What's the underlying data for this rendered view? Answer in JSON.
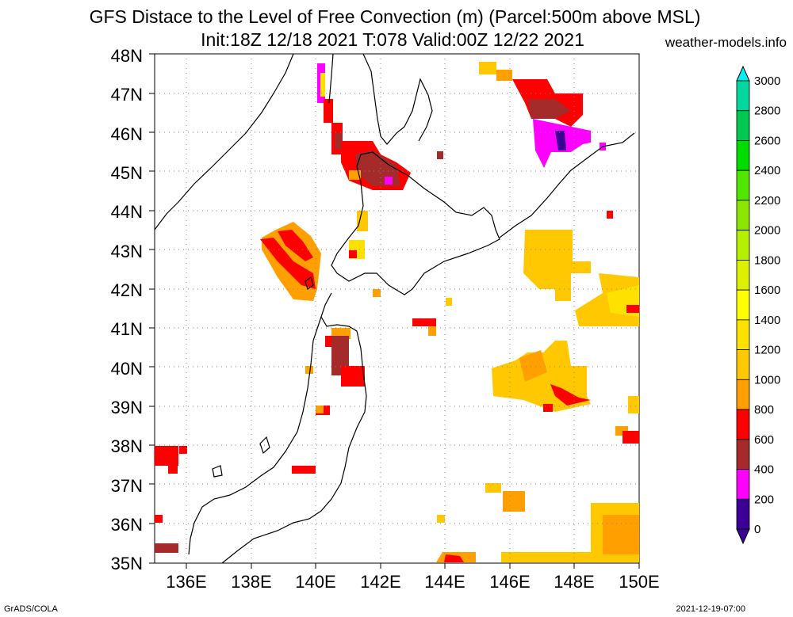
{
  "title_line1": "GFS Distace to the Level of Free Convection (m) (Parcel:500m above MSL)",
  "title_line2": "Init:18Z 12/18 2021 T:078 Valid:00Z 12/22 2021",
  "site": "weather-models.info",
  "footer_left": "GrADS/COLA",
  "footer_right": "2021-12-19-07:00",
  "lat_labels": [
    "48N",
    "47N",
    "46N",
    "45N",
    "44N",
    "43N",
    "42N",
    "41N",
    "40N",
    "39N",
    "38N",
    "37N",
    "36N",
    "35N"
  ],
  "lon_labels": [
    "136E",
    "138E",
    "140E",
    "142E",
    "144E",
    "146E",
    "148E",
    "150E"
  ],
  "colorbar": {
    "labels": [
      "3000",
      "2800",
      "2600",
      "2400",
      "2200",
      "2000",
      "1800",
      "1600",
      "1400",
      "1200",
      "1000",
      "800",
      "600",
      "400",
      "200",
      "0"
    ],
    "colors": [
      "#00f0f0",
      "#00d8a0",
      "#00c850",
      "#00dc00",
      "#50e600",
      "#8ce600",
      "#b4f000",
      "#dcf000",
      "#ffff00",
      "#ffe100",
      "#ffc800",
      "#ffa000",
      "#ff0000",
      "#a52a2a",
      "#ff00ff",
      "#3c0096"
    ]
  }
}
